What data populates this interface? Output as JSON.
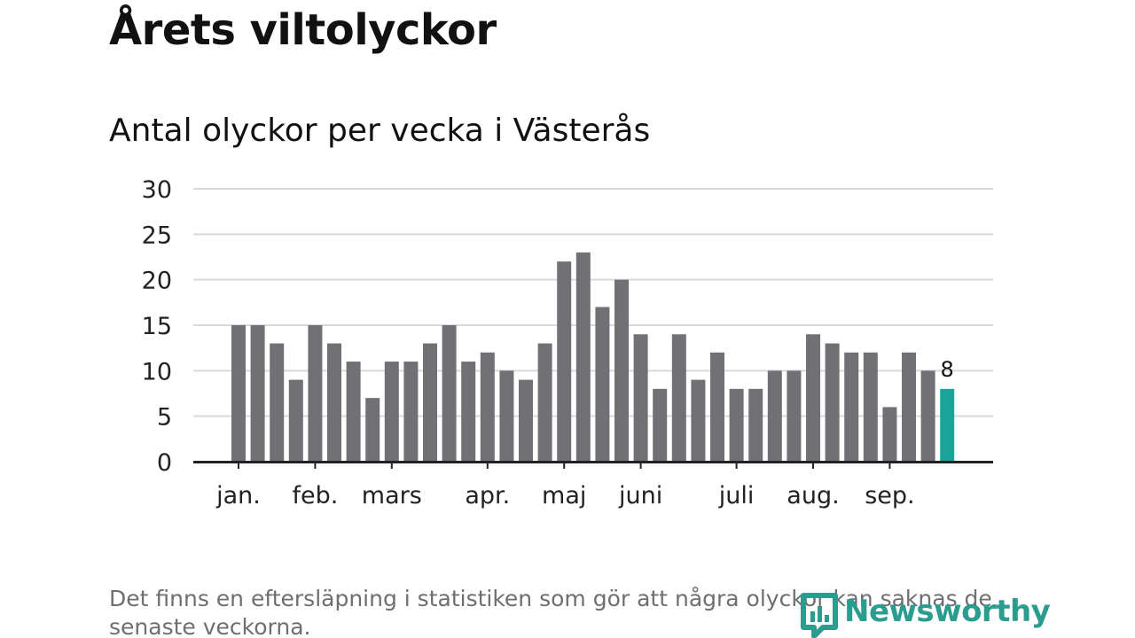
{
  "header": {
    "title": "Årets viltolyckor",
    "subtitle": "Antal olyckor per vecka i Västerås"
  },
  "footer": {
    "note": "Det finns en eftersläpning i statistiken som gör att några olyckor kan saknas de senaste veckorna.",
    "brand": "Newsworthy"
  },
  "colors": {
    "bar": "#717075",
    "highlight": "#1aa59a",
    "grid": "#d9d9d9",
    "axis": "#222222",
    "brand": "#2a9d8f"
  },
  "chart_data": {
    "type": "bar",
    "values": [
      15,
      15,
      13,
      9,
      15,
      13,
      11,
      7,
      11,
      11,
      13,
      15,
      11,
      12,
      10,
      9,
      13,
      22,
      23,
      17,
      20,
      14,
      8,
      14,
      9,
      12,
      8,
      8,
      10,
      10,
      14,
      13,
      12,
      12,
      6,
      12,
      10,
      8
    ],
    "highlight_last": true,
    "last_value_label": "8",
    "ylim": [
      0,
      30
    ],
    "yticks": [
      0,
      5,
      10,
      15,
      20,
      25,
      30
    ],
    "month_ticks": [
      {
        "label": "jan.",
        "bar": 0
      },
      {
        "label": "feb.",
        "bar": 4
      },
      {
        "label": "mars",
        "bar": 8
      },
      {
        "label": "apr.",
        "bar": 13
      },
      {
        "label": "maj",
        "bar": 17
      },
      {
        "label": "juni",
        "bar": 21
      },
      {
        "label": "juli",
        "bar": 26
      },
      {
        "label": "aug.",
        "bar": 30
      },
      {
        "label": "sep.",
        "bar": 34
      }
    ],
    "grid": true,
    "legend": "none",
    "xlabel": "",
    "ylabel": ""
  }
}
